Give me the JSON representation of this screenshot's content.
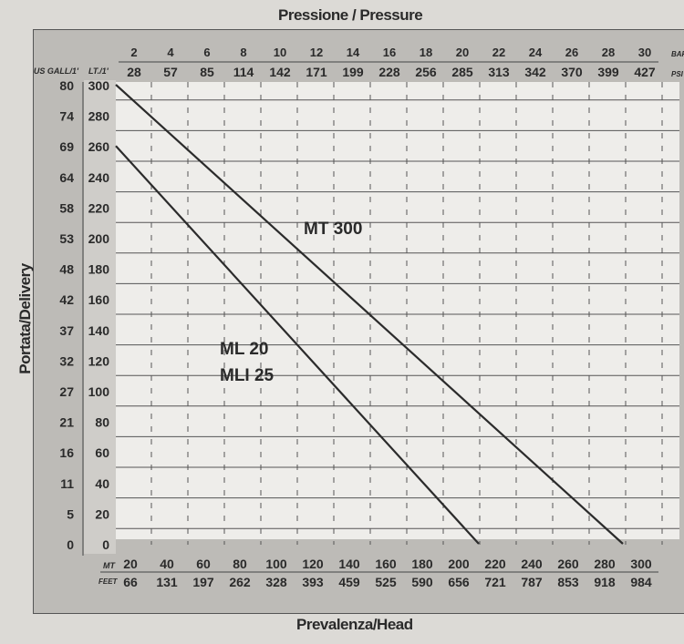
{
  "chart_data": {
    "type": "line",
    "title": "Pressione / Pressure",
    "xlabel": "Prevalenza/Head",
    "ylabel": "Portata/Delivery",
    "x_primary_unit": "MT",
    "x_secondary_unit": "FEET",
    "x_ticks_mt": [
      20,
      40,
      60,
      80,
      100,
      120,
      140,
      160,
      180,
      200,
      220,
      240,
      260,
      280,
      300
    ],
    "x_ticks_feet": [
      66,
      131,
      197,
      262,
      328,
      393,
      459,
      525,
      590,
      656,
      721,
      787,
      853,
      918,
      984
    ],
    "top_unit_bar": "BAR",
    "top_unit_psi": "PSI",
    "top_ticks_bar": [
      2,
      4,
      6,
      8,
      10,
      12,
      14,
      16,
      18,
      20,
      22,
      24,
      26,
      28,
      30
    ],
    "top_ticks_psi": [
      28,
      57,
      85,
      114,
      142,
      171,
      199,
      228,
      256,
      285,
      313,
      342,
      370,
      399,
      427
    ],
    "y_primary_unit": "LT./1'",
    "y_secondary_unit": "US GALL/1'",
    "y_ticks_lt": [
      300,
      280,
      260,
      240,
      220,
      200,
      180,
      160,
      140,
      120,
      100,
      80,
      60,
      40,
      20,
      0
    ],
    "y_ticks_usgall": [
      80,
      74,
      69,
      64,
      58,
      53,
      48,
      42,
      37,
      32,
      27,
      21,
      16,
      11,
      5,
      0
    ],
    "xlim": [
      0,
      310
    ],
    "ylim": [
      0,
      300
    ],
    "grid": true,
    "series": [
      {
        "name": "MT 300",
        "points": [
          [
            12,
            300
          ],
          [
            290,
            0
          ]
        ]
      },
      {
        "name": "ML  20 / MLI 25",
        "label_lines": [
          "ML  20",
          "MLI 25"
        ],
        "points": [
          [
            12,
            260
          ],
          [
            211,
            0
          ]
        ]
      }
    ],
    "line_color": "#2b2b2b"
  }
}
